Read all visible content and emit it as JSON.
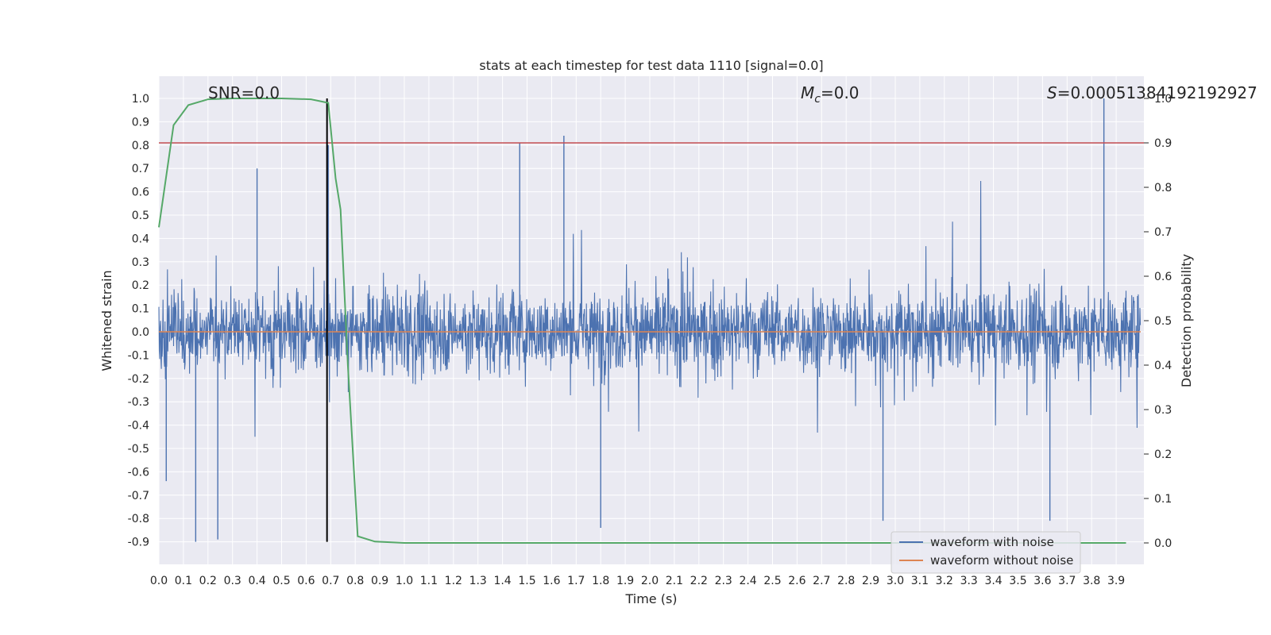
{
  "chart_data": {
    "type": "line",
    "title": "stats at each timestep for test data 1110 [signal=0.0]",
    "xlabel": "Time (s)",
    "ylabel": "Whitened strain",
    "ylabel_right": "Detection probability",
    "xlim": [
      0.0,
      4.0
    ],
    "ylim": [
      -1.0,
      1.1
    ],
    "ylim_right": [
      -0.05,
      1.05
    ],
    "x_ticks": [
      "0.0",
      "0.1",
      "0.2",
      "0.3",
      "0.4",
      "0.5",
      "0.6",
      "0.7",
      "0.8",
      "0.9",
      "1.0",
      "1.1",
      "1.2",
      "1.3",
      "1.4",
      "1.5",
      "1.6",
      "1.7",
      "1.8",
      "1.9",
      "2.0",
      "2.1",
      "2.2",
      "2.3",
      "2.4",
      "2.5",
      "2.6",
      "2.7",
      "2.8",
      "2.9",
      "3.0",
      "3.1",
      "3.2",
      "3.3",
      "3.4",
      "3.5",
      "3.6",
      "3.7",
      "3.8",
      "3.9"
    ],
    "y_ticks": [
      "1.0",
      "0.9",
      "0.8",
      "0.7",
      "0.6",
      "0.5",
      "0.4",
      "0.3",
      "0.2",
      "0.1",
      "0.0",
      "-0.1",
      "-0.2",
      "-0.3",
      "-0.4",
      "-0.5",
      "-0.6",
      "-0.7",
      "-0.8",
      "-0.9"
    ],
    "y_ticks_right": [
      "1.0",
      "0.9",
      "0.8",
      "0.7",
      "0.6",
      "0.5",
      "0.4",
      "0.3",
      "0.2",
      "0.1",
      "0.0"
    ],
    "grid": true,
    "legend_position": "bottom-right",
    "annotations": {
      "snr": "SNR=0.0",
      "mc_symbol": "M",
      "mc_sub": "c",
      "mc_value": "=0.0",
      "s_symbol": "S",
      "s_value": "=0.00051384192192927"
    },
    "series": [
      {
        "name": "waveform with noise",
        "color": "#4c72b0",
        "style": "dense-noise",
        "x_range": [
          0.0,
          4.0
        ],
        "peaks": [
          [
            0.03,
            -0.64
          ],
          [
            0.15,
            -0.9
          ],
          [
            0.24,
            -0.89
          ],
          [
            0.4,
            0.7
          ],
          [
            0.69,
            0.8
          ],
          [
            1.47,
            0.81
          ],
          [
            1.65,
            0.84
          ],
          [
            1.8,
            -0.84
          ],
          [
            2.95,
            -0.81
          ],
          [
            3.63,
            -0.81
          ],
          [
            3.85,
            1.0
          ]
        ]
      },
      {
        "name": "waveform without noise",
        "color": "#dd8452",
        "x": [
          0.0,
          4.0
        ],
        "values": [
          0.0,
          0.0
        ]
      },
      {
        "name": "",
        "axis": "right",
        "color": "#55a868",
        "x": [
          0.0,
          0.06,
          0.12,
          0.2,
          0.3,
          0.5,
          0.62,
          0.69,
          0.72,
          0.74,
          0.77,
          0.81,
          0.88,
          1.0,
          2.0,
          3.0,
          3.94
        ],
        "values": [
          0.71,
          0.94,
          0.985,
          0.998,
          1.0,
          1.0,
          0.998,
          0.99,
          0.82,
          0.75,
          0.4,
          0.015,
          0.003,
          0.0,
          0.0,
          0.0,
          0.0
        ]
      }
    ],
    "reference_lines": [
      {
        "axis": "right",
        "orientation": "horizontal",
        "value": 0.9,
        "color": "#c44e52"
      },
      {
        "axis": "left",
        "orientation": "vertical",
        "value": 0.685,
        "y_range": [
          -0.9,
          1.0
        ],
        "color": "#000000"
      }
    ]
  }
}
